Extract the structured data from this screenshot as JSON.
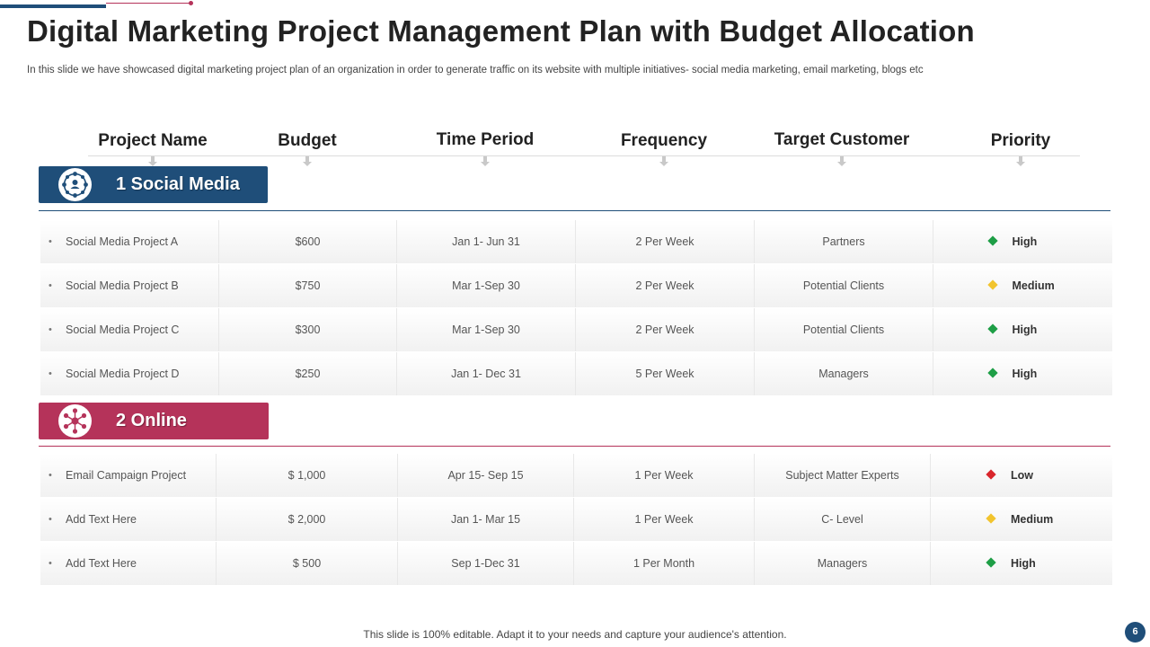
{
  "title": "Digital Marketing Project Management Plan with Budget Allocation",
  "subtitle": "In this slide we have showcased digital marketing project plan of an organization in order to  generate traffic on its website with multiple initiatives- social media marketing, email marketing, blogs etc",
  "columns": [
    "Project Name",
    "Budget",
    "Time Period",
    "Frequency",
    "Target Customer",
    "Priority"
  ],
  "colors": {
    "blue": "#1f4e79",
    "pink": "#b5335a",
    "high": "#1e9e46",
    "medium": "#f2c42e",
    "low": "#d9262c"
  },
  "sections": [
    {
      "label": "1 Social Media",
      "icon": "network-people-icon",
      "rows": [
        {
          "name": "Social Media Project A",
          "budget": "$600",
          "period": "Jan 1- Jun 31",
          "frequency": "2 Per Week",
          "target": "Partners",
          "priority": "High",
          "level": "high"
        },
        {
          "name": "Social Media Project B",
          "budget": "$750",
          "period": "Mar 1-Sep 30",
          "frequency": "2 Per Week",
          "target": "Potential Clients",
          "priority": "Medium",
          "level": "medium"
        },
        {
          "name": "Social Media Project C",
          "budget": "$300",
          "period": "Mar 1-Sep 30",
          "frequency": "2 Per Week",
          "target": "Potential Clients",
          "priority": "High",
          "level": "high"
        },
        {
          "name": "Social Media Project D",
          "budget": "$250",
          "period": "Jan 1- Dec 31",
          "frequency": "5 Per Week",
          "target": "Managers",
          "priority": "High",
          "level": "high"
        }
      ]
    },
    {
      "label": "2 Online",
      "icon": "network-nodes-icon",
      "rows": [
        {
          "name": "Email Campaign Project",
          "budget": "$ 1,000",
          "period": "Apr 15- Sep 15",
          "frequency": "1 Per Week",
          "target": "Subject Matter  Experts",
          "priority": "Low",
          "level": "low"
        },
        {
          "name": "Add Text Here",
          "budget": "$ 2,000",
          "period": "Jan 1- Mar 15",
          "frequency": "1 Per Week",
          "target": "C- Level",
          "priority": "Medium",
          "level": "medium"
        },
        {
          "name": "Add Text Here",
          "budget": "$ 500",
          "period": "Sep 1-Dec 31",
          "frequency": "1 Per Month",
          "target": "Managers",
          "priority": "High",
          "level": "high"
        }
      ]
    }
  ],
  "footer": "This slide is 100% editable. Adapt it to your needs and capture your audience's attention.",
  "page_number": "6"
}
